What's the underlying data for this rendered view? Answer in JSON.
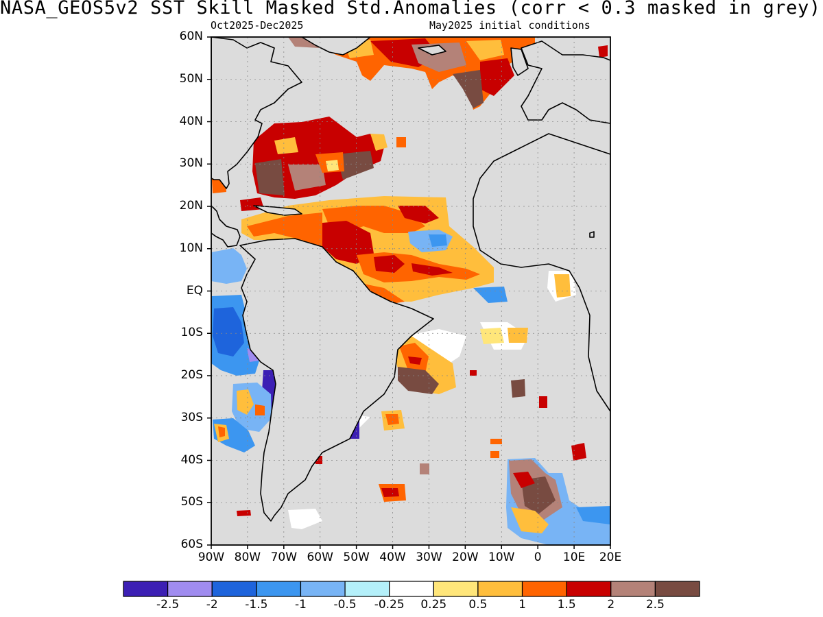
{
  "header": {
    "title": "NASA_GEOS5v2   SST Skill Masked Std.Anomalies (corr < 0.3 masked in grey)",
    "period": "Oct2025-Dec2025",
    "init": "May2025 initial conditions"
  },
  "map": {
    "lat_labels": [
      "60N",
      "50N",
      "40N",
      "30N",
      "20N",
      "10N",
      "EQ",
      "10S",
      "20S",
      "30S",
      "40S",
      "50S",
      "60S"
    ],
    "lon_labels": [
      "90W",
      "80W",
      "70W",
      "60W",
      "50W",
      "40W",
      "30W",
      "20W",
      "10W",
      "0",
      "10E",
      "20E"
    ],
    "lat_range": [
      -60,
      60
    ],
    "lon_range": [
      -90,
      20
    ],
    "grid": true,
    "mask_color": "#dcdcdc",
    "land_color": "#dcdcdc"
  },
  "colorbar": {
    "colors": [
      "#3c1fb4",
      "#a08cf0",
      "#1e64dc",
      "#3c96f0",
      "#78b4f5",
      "#b4f0fa",
      "#ffffff",
      "#ffe67a",
      "#ffbe3c",
      "#ff6400",
      "#c80000",
      "#b48278",
      "#784b41"
    ],
    "labels": [
      "-2.5",
      "-2",
      "-1.5",
      "-1",
      "-0.5",
      "-0.25",
      "0.25",
      "0.5",
      "1",
      "1.5",
      "2",
      "2.5"
    ]
  }
}
